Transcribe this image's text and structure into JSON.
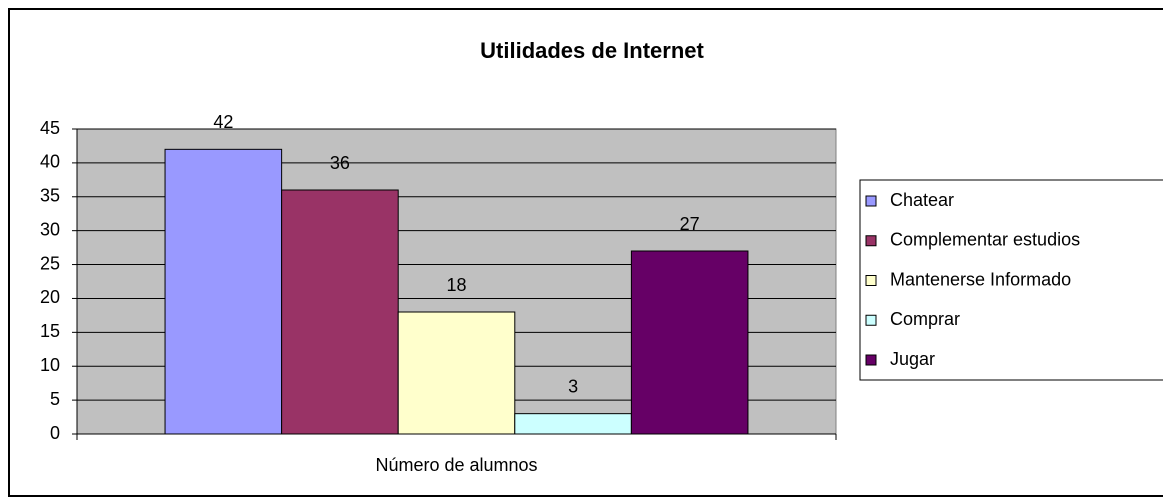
{
  "chart_data": {
    "type": "bar",
    "title": "Utilidades de Internet",
    "categories": [
      "Número de alumnos"
    ],
    "series": [
      {
        "name": "Chatear",
        "color": "#9999ff",
        "values": [
          42
        ]
      },
      {
        "name": "Complementar estudios",
        "color": "#993366",
        "values": [
          36
        ]
      },
      {
        "name": "Mantenerse Informado",
        "color": "#ffffcc",
        "values": [
          18
        ]
      },
      {
        "name": "Comprar",
        "color": "#ccffff",
        "values": [
          3
        ]
      },
      {
        "name": "Jugar",
        "color": "#660066",
        "values": [
          27
        ]
      }
    ],
    "ylim": [
      0,
      45
    ],
    "yticks": [
      0,
      5,
      10,
      15,
      20,
      25,
      30,
      35,
      40,
      45
    ],
    "grid": true,
    "legend": "right"
  }
}
